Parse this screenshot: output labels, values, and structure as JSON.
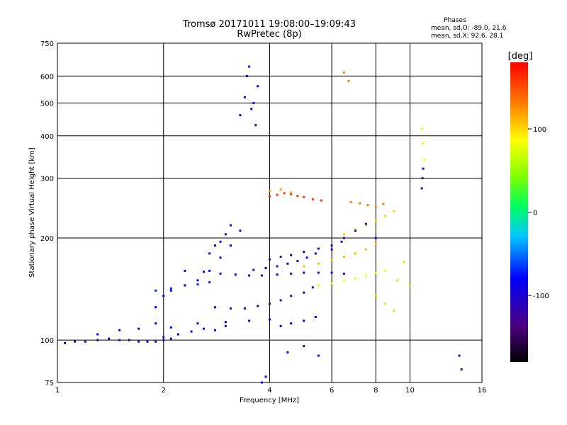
{
  "chart_data": {
    "type": "scatter",
    "title": "Tromsø 20171011 19:08:00–19:09:43",
    "subtitle": "RwPretec (8p)",
    "xlabel": "Frequency [MHz]",
    "ylabel": "Stationary phase Virtual Height [km]",
    "x_scale": "log",
    "y_scale": "log",
    "xlim": [
      1,
      16
    ],
    "ylim": [
      75,
      750
    ],
    "x_ticks": [
      1,
      2,
      4,
      6,
      8,
      10,
      16
    ],
    "y_ticks": [
      75,
      100,
      200,
      300,
      400,
      500,
      600,
      750
    ],
    "grid": true,
    "phase_stats": {
      "heading": "Phases",
      "line_o": "mean, sd,O: -89.0, 21.6",
      "line_x": "mean, sd,X:  92.6, 28.1"
    },
    "colorbar": {
      "label": "[deg]",
      "range": [
        -180,
        180
      ],
      "ticks": [
        100,
        0,
        -100
      ]
    },
    "series": [
      {
        "x": [
          1.05,
          1.12,
          1.2,
          1.3,
          1.4,
          1.5,
          1.6,
          1.7,
          1.8,
          1.9,
          2.0,
          2.1
        ],
        "y": [
          98,
          99,
          99,
          100,
          101,
          100,
          100,
          99,
          99,
          99,
          100,
          101
        ],
        "phase": -110
      },
      {
        "x": [
          1.3,
          1.5,
          1.7,
          1.9,
          2.1
        ],
        "y": [
          104,
          107,
          108,
          112,
          109
        ],
        "phase": -80
      },
      {
        "x": [
          2.0,
          2.2,
          2.4,
          2.6,
          2.8,
          3.0
        ],
        "y": [
          102,
          104,
          106,
          108,
          107,
          110
        ],
        "phase": -100
      },
      {
        "x": [
          1.9,
          2.0,
          2.1,
          2.3,
          2.5,
          2.7,
          2.9,
          3.1,
          3.3
        ],
        "y": [
          125,
          135,
          140,
          145,
          150,
          160,
          175,
          190,
          210
        ],
        "phase": -85
      },
      {
        "x": [
          2.7,
          2.8,
          2.9,
          3.0,
          3.1
        ],
        "y": [
          180,
          190,
          195,
          205,
          218
        ],
        "phase": -95
      },
      {
        "x": [
          1.9,
          2.1,
          2.3,
          2.5,
          2.7
        ],
        "y": [
          140,
          142,
          145,
          146,
          148
        ],
        "phase": -70
      },
      {
        "x": [
          2.3,
          2.6,
          2.9,
          3.2,
          3.5,
          3.8,
          4.2,
          4.6,
          5.0,
          5.5,
          6.0,
          6.5
        ],
        "y": [
          160,
          159,
          157,
          156,
          155,
          155,
          156,
          157,
          158,
          158,
          158,
          157
        ],
        "phase": -110
      },
      {
        "x": [
          2.8,
          3.1,
          3.4,
          3.7,
          4.0,
          4.3,
          4.6,
          5.0,
          5.3
        ],
        "y": [
          125,
          124,
          124,
          126,
          128,
          131,
          135,
          138,
          143
        ],
        "phase": -115
      },
      {
        "x": [
          3.6,
          3.9,
          4.2,
          4.5,
          4.8,
          5.1,
          5.4
        ],
        "y": [
          161,
          163,
          165,
          168,
          171,
          175,
          180
        ],
        "phase": -110
      },
      {
        "x": [
          4.0,
          4.3,
          4.6,
          5.0,
          5.5,
          6.0,
          6.4
        ],
        "y": [
          173,
          176,
          178,
          182,
          186,
          190,
          195
        ],
        "phase": -105
      },
      {
        "x": [
          2.5,
          3.0,
          3.5,
          4.0
        ],
        "y": [
          112,
          113,
          114,
          115
        ],
        "phase": -90
      },
      {
        "x": [
          3.3,
          3.4,
          3.45,
          3.5,
          3.55,
          3.6,
          3.65,
          3.7
        ],
        "y": [
          460,
          520,
          600,
          640,
          480,
          500,
          430,
          560
        ],
        "phase": -95
      },
      {
        "x": [
          4.0,
          4.2,
          4.4,
          4.6,
          4.8,
          5.0,
          5.3,
          5.6
        ],
        "y": [
          265,
          268,
          271,
          269,
          266,
          264,
          260,
          258
        ],
        "phase": 160
      },
      {
        "x": [
          4.0,
          4.3,
          4.6
        ],
        "y": [
          275,
          278,
          272
        ],
        "phase": 120
      },
      {
        "x": [
          5.5,
          6.0,
          6.5,
          7.0,
          7.5,
          8.0,
          8.5
        ],
        "y": [
          145,
          147,
          150,
          152,
          155,
          158,
          160
        ],
        "phase": 80
      },
      {
        "x": [
          5.0,
          5.5,
          6.0,
          6.5,
          7.0,
          7.5,
          8.0
        ],
        "y": [
          165,
          168,
          172,
          176,
          180,
          185,
          192
        ],
        "phase": 110
      },
      {
        "x": [
          6.5,
          7.0,
          7.5,
          8.0,
          8.5,
          9.0
        ],
        "y": [
          205,
          212,
          218,
          225,
          232,
          240
        ],
        "phase": 100
      },
      {
        "x": [
          6.8,
          7.2,
          7.6,
          8.0,
          8.4
        ],
        "y": [
          255,
          253,
          250,
          247,
          252
        ],
        "phase": 130
      },
      {
        "x": [
          6.0,
          6.5,
          7.0,
          7.5,
          8.0
        ],
        "y": [
          185,
          200,
          210,
          220,
          200
        ],
        "phase": -110
      },
      {
        "x": [
          4.3,
          4.6,
          5.0,
          5.4
        ],
        "y": [
          110,
          112,
          114,
          117
        ],
        "phase": -85
      },
      {
        "x": [
          10.8,
          10.9,
          11.0
        ],
        "y": [
          420,
          380,
          340
        ],
        "phase": 90
      },
      {
        "x": [
          10.8,
          10.85,
          10.9
        ],
        "y": [
          280,
          300,
          320
        ],
        "phase": -120
      },
      {
        "x": [
          13.8,
          14.0
        ],
        "y": [
          90,
          82
        ],
        "phase": -120
      },
      {
        "x": [
          3.8,
          3.9
        ],
        "y": [
          75,
          78
        ],
        "phase": -80
      },
      {
        "x": [
          6.5,
          6.7
        ],
        "y": [
          615,
          580
        ],
        "phase": 130
      },
      {
        "x": [
          9.2,
          9.6,
          10.0
        ],
        "y": [
          150,
          170,
          145
        ],
        "phase": 60
      },
      {
        "x": [
          8.0,
          8.5,
          9.0
        ],
        "y": [
          135,
          128,
          122
        ],
        "phase": 100
      },
      {
        "x": [
          4.5,
          5.0,
          5.5
        ],
        "y": [
          92,
          96,
          90
        ],
        "phase": -110
      }
    ]
  }
}
